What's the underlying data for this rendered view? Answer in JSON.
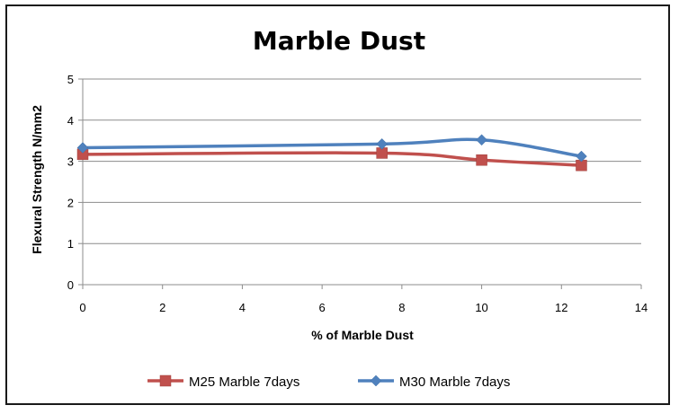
{
  "chart_data": {
    "type": "line",
    "title": "Marble Dust",
    "xlabel": "% of Marble Dust",
    "ylabel": "Flexural Strength  N/mm2",
    "xlim": [
      0,
      14
    ],
    "ylim": [
      0,
      5
    ],
    "x_ticks": [
      "0",
      "2",
      "4",
      "6",
      "8",
      "10",
      "12",
      "14"
    ],
    "y_ticks": [
      "0",
      "1",
      "2",
      "3",
      "4",
      "5"
    ],
    "grid": "horizontal",
    "legend_position": "bottom",
    "series": [
      {
        "name": "M25 Marble 7days",
        "color": "#c0504d",
        "marker": "square",
        "x": [
          0,
          7.5,
          10,
          12.5
        ],
        "y": [
          3.17,
          3.2,
          3.03,
          2.9
        ]
      },
      {
        "name": "M30 Marble 7days",
        "color": "#4f81bd",
        "marker": "diamond",
        "x": [
          0,
          7.5,
          10,
          12.5
        ],
        "y": [
          3.33,
          3.42,
          3.52,
          3.12
        ]
      }
    ]
  }
}
